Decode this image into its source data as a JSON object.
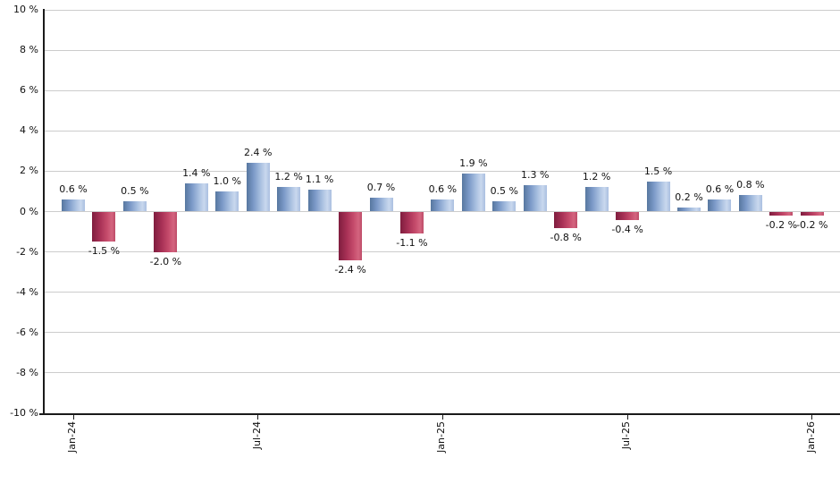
{
  "chart_data": {
    "type": "bar",
    "title": "",
    "xlabel": "",
    "ylabel": "",
    "ylim": [
      -10,
      10
    ],
    "grid": "horizontal",
    "legend": "none",
    "y_ticks": [
      {
        "value": 10,
        "label": "10 %"
      },
      {
        "value": 8,
        "label": "8 %"
      },
      {
        "value": 6,
        "label": "6 %"
      },
      {
        "value": 4,
        "label": "4 %"
      },
      {
        "value": 2,
        "label": "2 %"
      },
      {
        "value": 0,
        "label": "0 %"
      },
      {
        "value": -2,
        "label": "-2 %"
      },
      {
        "value": -4,
        "label": "-4 %"
      },
      {
        "value": -6,
        "label": "-6 %"
      },
      {
        "value": -8,
        "label": "-8 %"
      },
      {
        "value": -10,
        "label": "-10 %"
      }
    ],
    "x_ticks": [
      {
        "bar_index": 0,
        "label": "Jan-24"
      },
      {
        "bar_index": 6,
        "label": "Jul-24"
      },
      {
        "bar_index": 12,
        "label": "Jan-25"
      },
      {
        "bar_index": 18,
        "label": "Jul-25"
      },
      {
        "bar_index": 24,
        "label": "Jan-26"
      }
    ],
    "bars": [
      {
        "value": 0.6,
        "label": "0.6 %"
      },
      {
        "value": -1.5,
        "label": "-1.5 %"
      },
      {
        "value": 0.5,
        "label": "0.5 %"
      },
      {
        "value": -2.0,
        "label": "-2.0 %"
      },
      {
        "value": 1.4,
        "label": "1.4 %"
      },
      {
        "value": 1.0,
        "label": "1.0 %"
      },
      {
        "value": 2.4,
        "label": "2.4 %"
      },
      {
        "value": 1.2,
        "label": "1.2 %"
      },
      {
        "value": 1.1,
        "label": "1.1 %"
      },
      {
        "value": -2.4,
        "label": "-2.4 %"
      },
      {
        "value": 0.7,
        "label": "0.7 %"
      },
      {
        "value": -1.1,
        "label": "-1.1 %"
      },
      {
        "value": 0.6,
        "label": "0.6 %"
      },
      {
        "value": 1.9,
        "label": "1.9 %"
      },
      {
        "value": 0.5,
        "label": "0.5 %"
      },
      {
        "value": 1.3,
        "label": "1.3 %"
      },
      {
        "value": -0.8,
        "label": "-0.8 %"
      },
      {
        "value": 1.2,
        "label": "1.2 %"
      },
      {
        "value": -0.4,
        "label": "-0.4 %"
      },
      {
        "value": 1.5,
        "label": "1.5 %"
      },
      {
        "value": 0.2,
        "label": "0.2 %"
      },
      {
        "value": 0.6,
        "label": "0.6 %"
      },
      {
        "value": 0.8,
        "label": "0.8 %"
      },
      {
        "value": -0.2,
        "label": "-0.2 %"
      },
      {
        "value": -0.2,
        "label": "-0.2 %"
      }
    ],
    "colors": {
      "positive": "#6d8cbf",
      "negative": "#b23b5e",
      "positive_gradient": [
        "#57779f 0%",
        "#7b99c8 30%",
        "#a9c0e0 60%",
        "#c9d8ee 82%",
        "#aabfe0 100%"
      ],
      "negative_gradient": [
        "#7f1d3e 0%",
        "#a83156 35%",
        "#c64c6c 65%",
        "#d4647f 85%",
        "#bd4c68 100%"
      ],
      "gridline": "#cccccc",
      "axis": "#1a1a1a",
      "text": "#111111",
      "background": "#ffffff"
    }
  }
}
